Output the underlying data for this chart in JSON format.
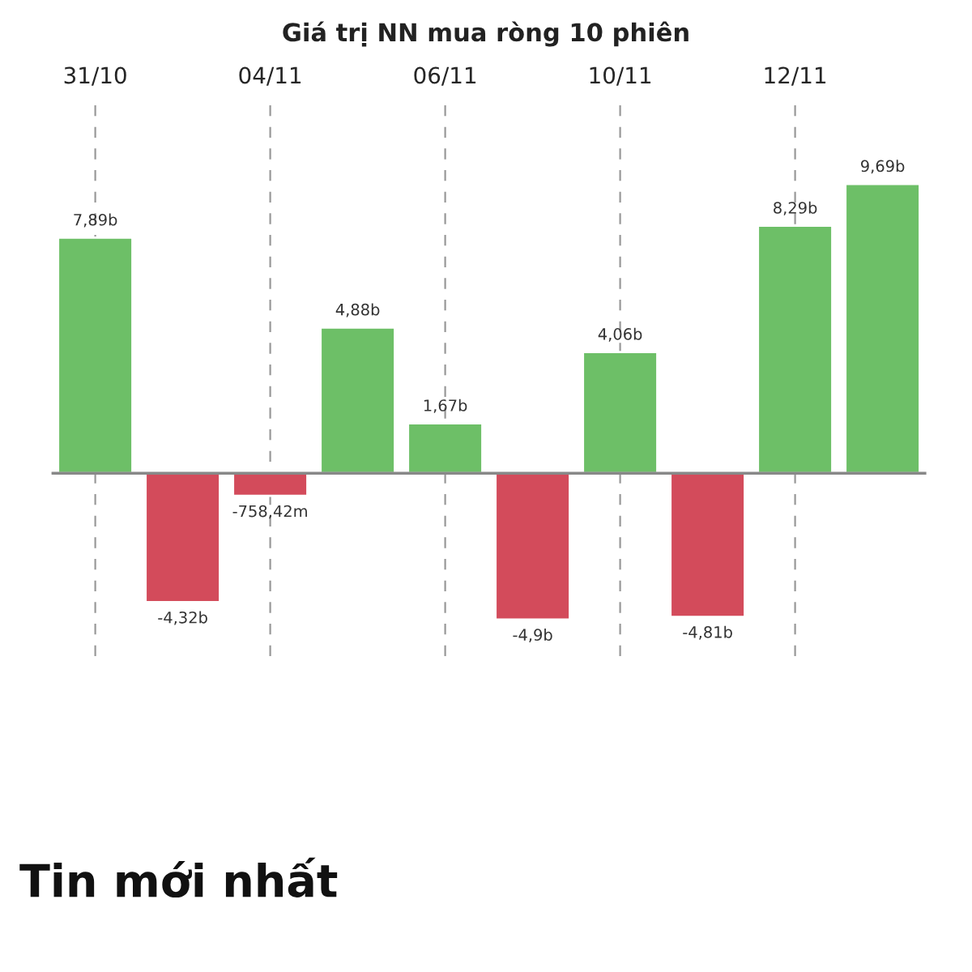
{
  "chart_data": {
    "type": "bar",
    "title": "Giá trị NN mua ròng 10 phiên",
    "categories": [
      "31/10",
      null,
      "04/11",
      null,
      "06/11",
      null,
      "10/11",
      null,
      "12/11",
      null
    ],
    "values": [
      7890000000,
      -4320000000,
      -758420000,
      4880000000,
      1670000000,
      -4900000000,
      4060000000,
      -4810000000,
      8290000000,
      9690000000
    ],
    "value_labels": [
      "7,89b",
      "-4,32b",
      "-758,42m",
      "4,88b",
      "1,67b",
      "-4,9b",
      "4,06b",
      "-4,81b",
      "8,29b",
      "9,69b"
    ],
    "colors": [
      "#6dbf67",
      "#d34b5b",
      "#d34b5b",
      "#6dbf67",
      "#6dbf67",
      "#d34b5b",
      "#6dbf67",
      "#d34b5b",
      "#6dbf67",
      "#6dbf67"
    ],
    "grid": "x",
    "line_style": "dashed",
    "annotations": [
      "Tin mới nhất"
    ]
  }
}
